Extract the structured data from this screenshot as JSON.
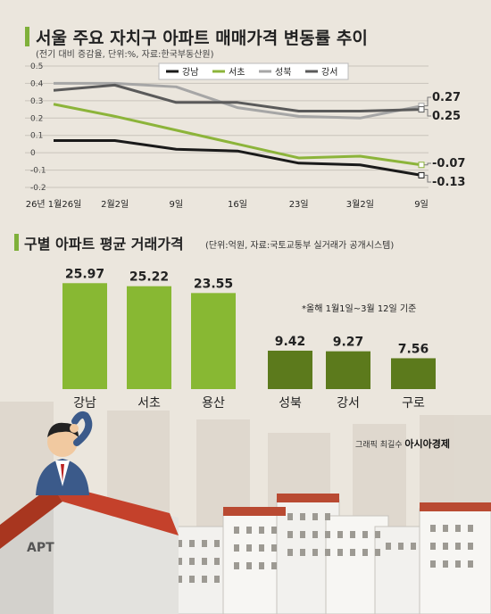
{
  "line_section": {
    "title": "서울 주요 자치구 아파트 매매가격 변동률 추이",
    "subtitle": "(전기 대비 증감율, 단위:%, 자료:한국부동산원)"
  },
  "bar_section": {
    "title": "구별 아파트 평균 거래가격",
    "subtitle": "(단위:억원, 자료:국토교통부 실거래가 공개시스템)",
    "note": "*올해 1월1일~3월 12일 기준"
  },
  "illustration": {
    "building_label": "APT",
    "credit_prefix": "그래픽 최길수",
    "credit_brand": "아시아경제"
  },
  "colors": {
    "gangnam": "#1a1a1a",
    "seocho": "#8cb43a",
    "seongbuk": "#a6a6a6",
    "gangseo": "#5a5a5a",
    "bar_light": "#88b833",
    "bar_dark": "#5c7a1c",
    "accent": "#7fb03a"
  },
  "chart_data": [
    {
      "type": "line",
      "title": "서울 주요 자치구 아파트 매매가격 변동률 추이",
      "x": [
        "26년 1월26일",
        "2월2일",
        "9일",
        "16일",
        "23일",
        "3월2일",
        "9일"
      ],
      "ylim": [
        -0.2,
        0.5
      ],
      "yticks": [
        "0.5",
        "0.4",
        "0.3",
        "0.2",
        "0.1",
        "0",
        "-0.1",
        "-0.2"
      ],
      "grid": true,
      "legend_position": "top",
      "series": [
        {
          "name": "강남",
          "color_key": "gangnam",
          "values": [
            0.07,
            0.07,
            0.02,
            0.01,
            -0.06,
            -0.07,
            -0.13
          ],
          "end_label": "-0.13"
        },
        {
          "name": "서초",
          "color_key": "seocho",
          "values": [
            0.28,
            0.21,
            0.13,
            0.05,
            -0.03,
            -0.02,
            -0.07
          ],
          "end_label": "-0.07"
        },
        {
          "name": "성북",
          "color_key": "seongbuk",
          "values": [
            0.4,
            0.4,
            0.38,
            0.26,
            0.21,
            0.2,
            0.27
          ],
          "end_label": "0.27"
        },
        {
          "name": "강서",
          "color_key": "gangseo",
          "values": [
            0.36,
            0.39,
            0.29,
            0.29,
            0.24,
            0.24,
            0.25
          ],
          "end_label": "0.25"
        }
      ]
    },
    {
      "type": "bar",
      "title": "구별 아파트 평균 거래가격",
      "categories": [
        "강남",
        "서초",
        "용산",
        "성북",
        "강서",
        "구로"
      ],
      "values": [
        25.97,
        25.22,
        23.55,
        9.42,
        9.27,
        7.56
      ],
      "labels": [
        "25.97",
        "25.22",
        "23.55",
        "9.42",
        "9.27",
        "7.56"
      ],
      "color_keys": [
        "bar_light",
        "bar_light",
        "bar_light",
        "bar_dark",
        "bar_dark",
        "bar_dark"
      ],
      "ylim": [
        0,
        28
      ]
    }
  ]
}
